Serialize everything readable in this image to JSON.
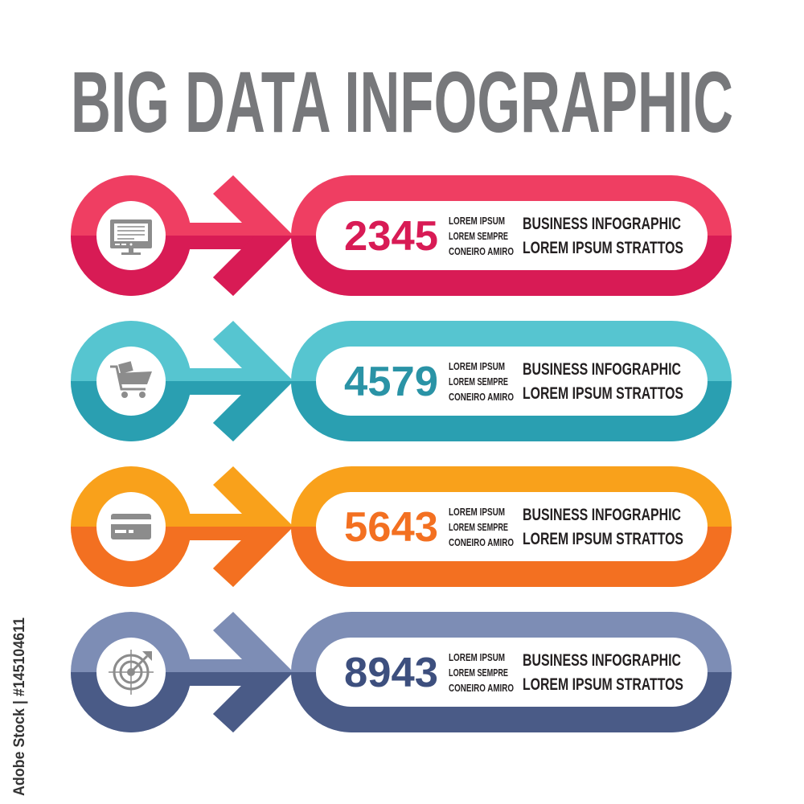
{
  "title": "BIG DATA INFOGRAPHIC",
  "title_color": "#77787b",
  "watermark": "Adobe Stock | #145104611",
  "rows": [
    {
      "number": "2345",
      "icon": "monitor-icon",
      "small_lines": [
        "LOREM IPSUM",
        "LOREM SEMPRE",
        "CONEIRO AMIRO"
      ],
      "heading_lines": [
        "BUSINESS INFOGRAPHIC",
        "LOREM IPSUM STRATTOS"
      ],
      "color_top": "#ef3e62",
      "color_bottom": "#d81b55",
      "number_color": "#d81b55"
    },
    {
      "number": "4579",
      "icon": "shopping-cart-icon",
      "small_lines": [
        "LOREM IPSUM",
        "LOREM SEMPRE",
        "CONEIRO AMIRO"
      ],
      "heading_lines": [
        "BUSINESS INFOGRAPHIC",
        "LOREM IPSUM STRATTOS"
      ],
      "color_top": "#56c5d0",
      "color_bottom": "#2a9fb1",
      "number_color": "#2a93a6"
    },
    {
      "number": "5643",
      "icon": "credit-card-icon",
      "small_lines": [
        "LOREM IPSUM",
        "LOREM SEMPRE",
        "CONEIRO AMIRO"
      ],
      "heading_lines": [
        "BUSINESS INFOGRAPHIC",
        "LOREM IPSUM STRATTOS"
      ],
      "color_top": "#f9a11b",
      "color_bottom": "#f37021",
      "number_color": "#f37021"
    },
    {
      "number": "8943",
      "icon": "target-icon",
      "small_lines": [
        "LOREM IPSUM",
        "LOREM SEMPRE",
        "CONEIRO AMIRO"
      ],
      "heading_lines": [
        "BUSINESS INFOGRAPHIC",
        "LOREM IPSUM STRATTOS"
      ],
      "color_top": "#7d8db5",
      "color_bottom": "#4a5b87",
      "number_color": "#3d4f7e"
    }
  ]
}
